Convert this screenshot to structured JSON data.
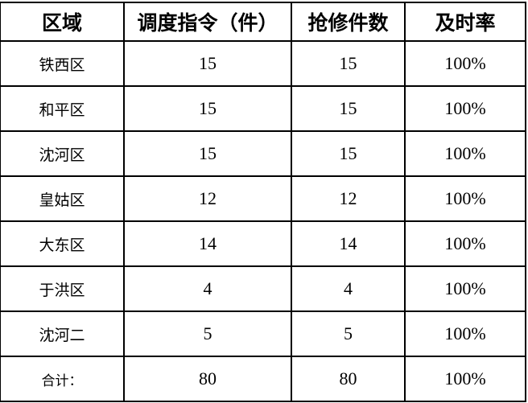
{
  "headers": [
    "区域",
    "调度指令（件）",
    "抢修件数",
    "及时率"
  ],
  "rows": [
    [
      "铁西区",
      "15",
      "15",
      "100%"
    ],
    [
      "和平区",
      "15",
      "15",
      "100%"
    ],
    [
      "沈河区",
      "15",
      "15",
      "100%"
    ],
    [
      "皇姑区",
      "12",
      "12",
      "100%"
    ],
    [
      "大东区",
      "14",
      "14",
      "100%"
    ],
    [
      "于洪区",
      "4",
      "4",
      "100%"
    ],
    [
      "沈河二",
      "5",
      "5",
      "100%"
    ]
  ],
  "total": [
    "合计：",
    "80",
    "80",
    "100%"
  ]
}
